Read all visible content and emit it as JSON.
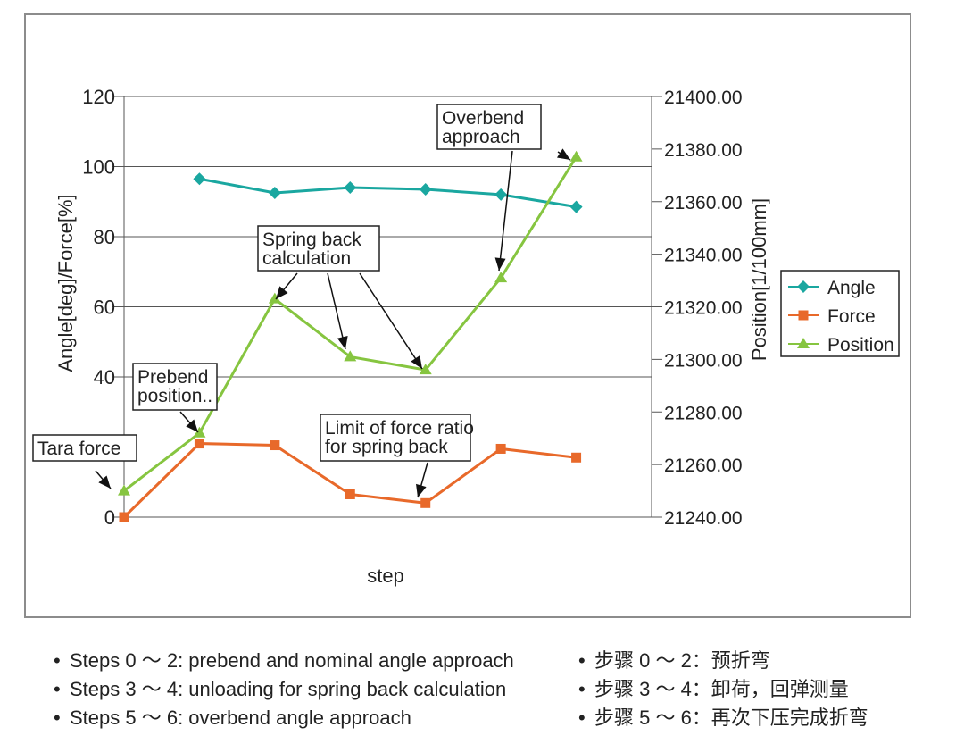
{
  "chart_data": {
    "type": "line",
    "x": [
      0,
      1,
      2,
      3,
      4,
      5,
      6
    ],
    "xlabel": "step",
    "ylabel_left": "Angle[deg]/Force[%]",
    "ylabel_right": "Position[1/100mm]",
    "ylim_left": [
      0,
      120
    ],
    "yticks_left": [
      "0",
      "20",
      "40",
      "60",
      "80",
      "100",
      "120"
    ],
    "ylim_right": [
      21240,
      21400
    ],
    "yticks_right": [
      "21240.00",
      "21260.00",
      "21280.00",
      "21300.00",
      "21320.00",
      "21340.00",
      "21360.00",
      "21380.00",
      "21400.00"
    ],
    "grid": "horizontal",
    "legend_position": "right",
    "series": [
      {
        "name": "Angle",
        "axis": "left",
        "color": "#1aa7a0",
        "marker": "diamond",
        "x": [
          1,
          2,
          3,
          4,
          5,
          6
        ],
        "values": [
          96.5,
          92.5,
          94,
          93.5,
          92,
          88.5
        ]
      },
      {
        "name": "Force",
        "axis": "left",
        "color": "#e8692a",
        "marker": "square",
        "x": [
          0,
          1,
          2,
          3,
          4,
          5,
          6
        ],
        "values": [
          0,
          21,
          20.5,
          6.5,
          4,
          19.5,
          17
        ]
      },
      {
        "name": "Position",
        "axis": "right",
        "color": "#86c540",
        "marker": "triangle",
        "x": [
          0,
          1,
          2,
          3,
          4,
          5,
          6
        ],
        "values": [
          21250,
          21272,
          21323,
          21301,
          21296,
          21331,
          21377
        ]
      }
    ],
    "annotations": [
      {
        "text": [
          "Tara force"
        ]
      },
      {
        "text": [
          "Prebend",
          "position.."
        ]
      },
      {
        "text": [
          "Spring back",
          "calculation"
        ]
      },
      {
        "text": [
          "Limit of force ratio",
          "for spring back"
        ]
      },
      {
        "text": [
          "Overbend",
          "approach"
        ]
      }
    ]
  },
  "notes_en": [
    "Steps 0 ～ 2: prebend and nominal angle approach",
    "Steps 3 ～ 4: unloading for spring back calculation",
    "Steps 5 ～ 6: overbend angle approach"
  ],
  "notes_zh": [
    "步骤 0 ～ 2：预折弯",
    "步骤 3 ～ 4：卸荷，回弹测量",
    "步骤 5 ～ 6：再次下压完成折弯"
  ],
  "bullet": "•"
}
